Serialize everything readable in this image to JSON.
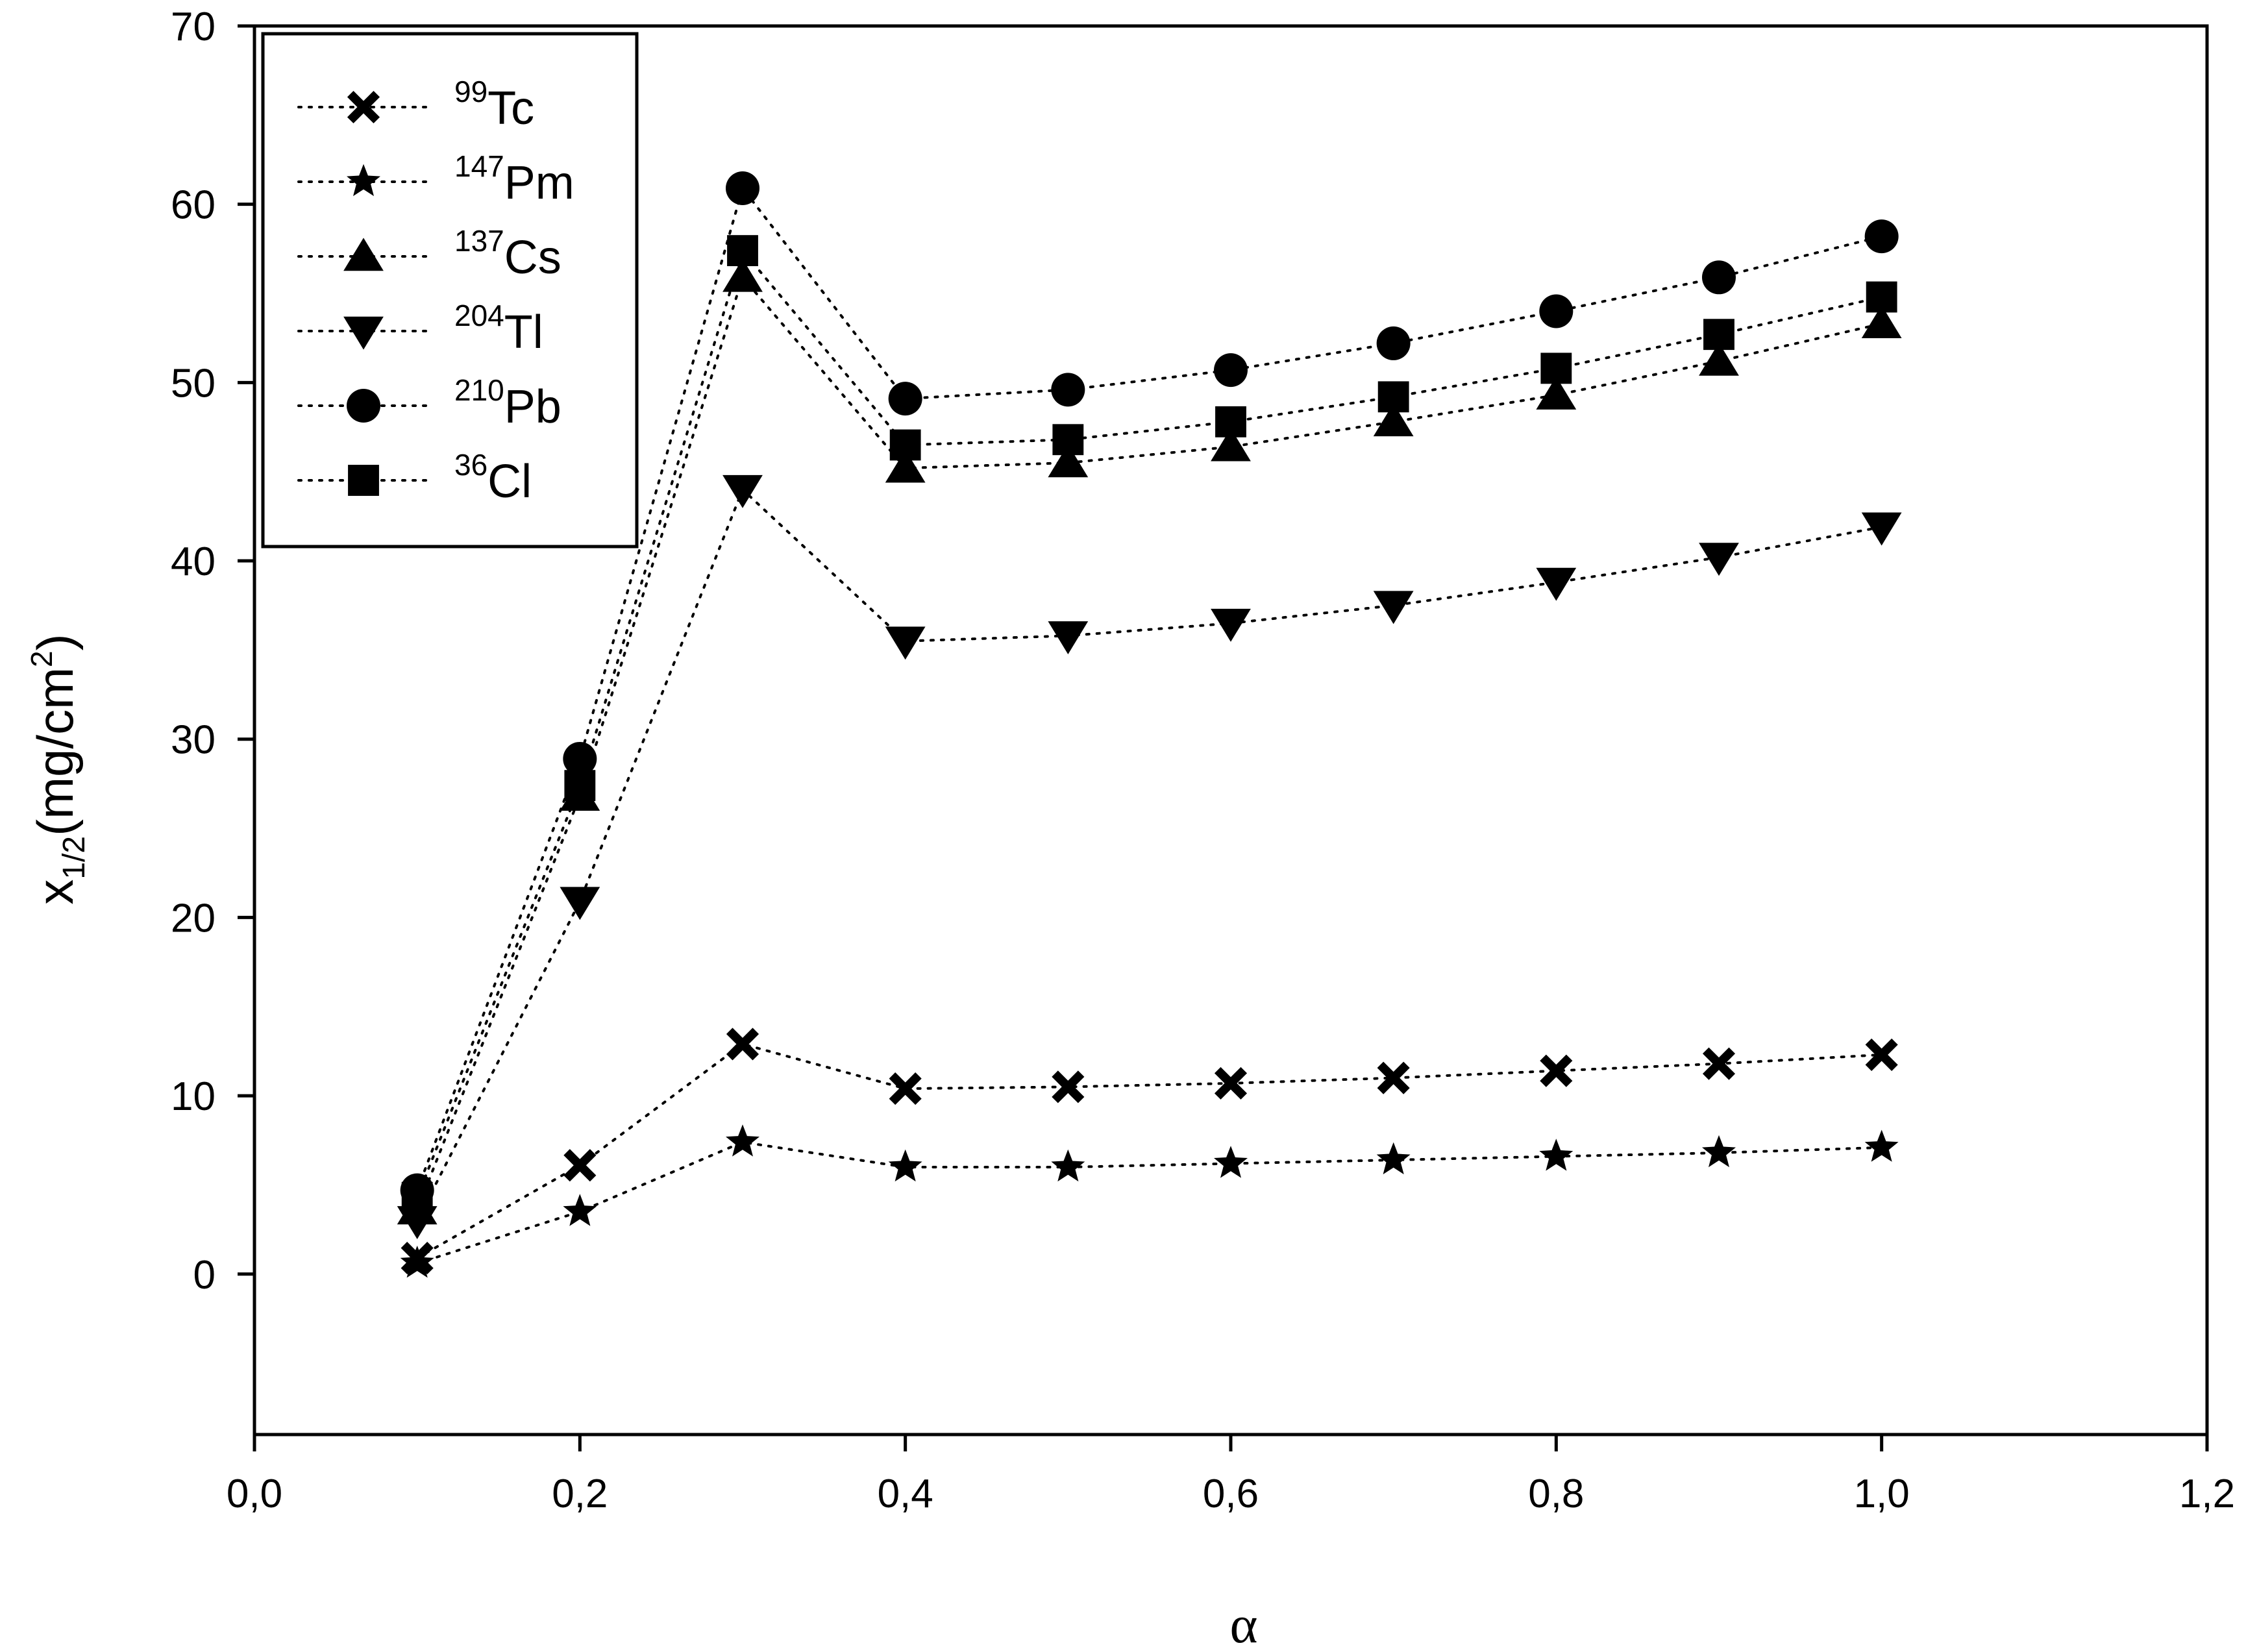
{
  "chart_data": {
    "type": "scatter",
    "title": "",
    "xlabel": "α",
    "ylabel": {
      "base": "x",
      "sub": "1/2",
      "main": "(mg/cm",
      "sup": "2",
      "end": ")"
    },
    "xlim": [
      0.0,
      1.2
    ],
    "ylim": [
      -9,
      70
    ],
    "x_ticks": [
      0.0,
      0.2,
      0.4,
      0.6,
      0.8,
      1.0,
      1.2
    ],
    "x_tick_labels": [
      "0,0",
      "0,2",
      "0,4",
      "0,6",
      "0,8",
      "1,0",
      "1,2"
    ],
    "y_ticks": [
      0,
      10,
      20,
      30,
      40,
      50,
      60,
      70
    ],
    "y_tick_labels": [
      "0",
      "10",
      "20",
      "30",
      "40",
      "50",
      "60",
      "70"
    ],
    "grid": false,
    "legend_position": "top-left",
    "line_style": "dotted",
    "x": [
      0.1,
      0.2,
      0.3,
      0.4,
      0.5,
      0.6,
      0.7,
      0.8,
      0.9,
      1.0
    ],
    "series": [
      {
        "name": {
          "sup": "99",
          "sym": "Tc"
        },
        "marker": "x",
        "values": [
          0.9,
          6.1,
          12.9,
          10.4,
          10.5,
          10.7,
          11.0,
          11.4,
          11.8,
          12.3
        ]
      },
      {
        "name": {
          "sup": "147",
          "sym": "Pm"
        },
        "marker": "star",
        "values": [
          0.6,
          3.5,
          7.4,
          6.0,
          6.0,
          6.2,
          6.4,
          6.6,
          6.8,
          7.1
        ]
      },
      {
        "name": {
          "sup": "137",
          "sym": "Cs"
        },
        "marker": "triangle-up",
        "values": [
          3.6,
          26.8,
          55.9,
          45.2,
          45.5,
          46.4,
          47.8,
          49.3,
          51.2,
          53.3
        ]
      },
      {
        "name": {
          "sup": "204",
          "sym": "Tl"
        },
        "marker": "triangle-down",
        "values": [
          3.0,
          20.9,
          44.0,
          35.5,
          35.8,
          36.5,
          37.5,
          38.8,
          40.2,
          41.9
        ]
      },
      {
        "name": {
          "sup": "210",
          "sym": "Pb"
        },
        "marker": "circle",
        "values": [
          4.7,
          28.9,
          60.9,
          49.1,
          49.6,
          50.7,
          52.2,
          54.0,
          55.9,
          58.2
        ]
      },
      {
        "name": {
          "sup": "36",
          "sym": "Cl"
        },
        "marker": "square",
        "values": [
          4.3,
          27.4,
          57.4,
          46.5,
          46.8,
          47.8,
          49.2,
          50.8,
          52.7,
          54.8
        ]
      }
    ]
  }
}
